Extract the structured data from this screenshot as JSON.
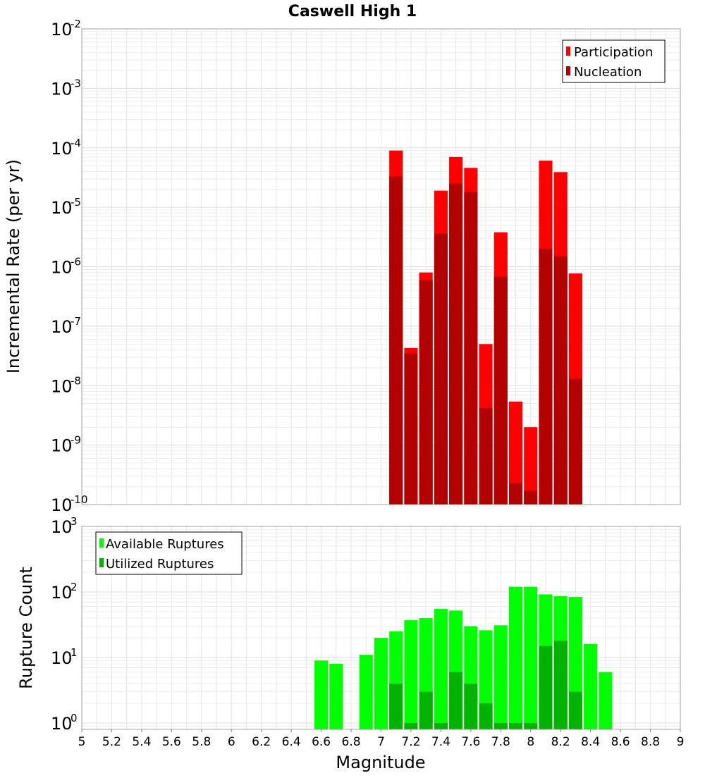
{
  "chart_data": [
    {
      "type": "bar",
      "title": "Caswell High 1",
      "xlabel": "",
      "ylabel": "Incremental Rate (per yr)",
      "ylog": true,
      "ylim": [
        1e-10,
        0.01
      ],
      "xlim": [
        5,
        9
      ],
      "legend_position": "top-right",
      "grid": true,
      "y_tick_exponents": [
        "-2",
        "-3",
        "-4",
        "-5",
        "-6",
        "-7",
        "-8",
        "-9",
        "-10"
      ],
      "y_tick_base": "10",
      "bar_width": 0.09,
      "series": [
        {
          "name": "Participation",
          "color": "#ff0000",
          "x": [
            7.1,
            7.2,
            7.3,
            7.4,
            7.5,
            7.6,
            7.7,
            7.8,
            7.9,
            8.0,
            8.1,
            8.2,
            8.3
          ],
          "values": [
            9e-05,
            4.3e-08,
            8e-07,
            1.9e-05,
            7e-05,
            4.6e-05,
            5e-08,
            3.8e-06,
            5.4e-09,
            2e-09,
            6.1e-05,
            3.9e-05,
            7.7e-07
          ]
        },
        {
          "name": "Nucleation",
          "color": "#b30000",
          "x": [
            7.1,
            7.2,
            7.3,
            7.4,
            7.5,
            7.6,
            7.7,
            7.8,
            7.9,
            8.0,
            8.1,
            8.2,
            8.3
          ],
          "values": [
            3.3e-05,
            3.5e-08,
            5.9e-07,
            3.6e-06,
            2.5e-05,
            1.8e-05,
            4.2e-09,
            6.8e-07,
            2.3e-10,
            1.7e-10,
            2e-06,
            1.5e-06,
            1.3e-08
          ]
        }
      ]
    },
    {
      "type": "bar",
      "title": "",
      "xlabel": "Magnitude",
      "ylabel": "Rupture Count",
      "ylog": true,
      "ylim": [
        0.8,
        1000
      ],
      "xlim": [
        5,
        9
      ],
      "legend_position": "top-left",
      "grid": true,
      "y_tick_exponents": [
        "3",
        "2",
        "1",
        "0"
      ],
      "y_tick_base": "10",
      "x_ticks": [
        "5",
        "5.2",
        "5.4",
        "5.6",
        "5.8",
        "6",
        "6.2",
        "6.4",
        "6.6",
        "6.8",
        "7",
        "7.2",
        "7.4",
        "7.6",
        "7.8",
        "8",
        "8.2",
        "8.4",
        "8.6",
        "8.8",
        "9"
      ],
      "bar_width": 0.09,
      "series": [
        {
          "name": "Available Ruptures",
          "color": "#00ff00",
          "x": [
            6.6,
            6.7,
            6.9,
            7.0,
            7.1,
            7.2,
            7.3,
            7.4,
            7.5,
            7.6,
            7.7,
            7.8,
            7.9,
            8.0,
            8.1,
            8.2,
            8.3,
            8.4,
            8.5
          ],
          "values": [
            9,
            8,
            11,
            20,
            25,
            37,
            40,
            55,
            52,
            30,
            26,
            31,
            120,
            120,
            92,
            86,
            84,
            16,
            6
          ]
        },
        {
          "name": "Utilized Ruptures",
          "color": "#00b300",
          "x": [
            7.1,
            7.2,
            7.3,
            7.4,
            7.5,
            7.6,
            7.7,
            7.8,
            7.9,
            8.0,
            8.1,
            8.2,
            8.3
          ],
          "values": [
            4,
            1,
            3,
            1,
            6,
            4,
            2,
            1,
            1,
            1,
            15,
            18,
            3
          ]
        }
      ]
    }
  ]
}
